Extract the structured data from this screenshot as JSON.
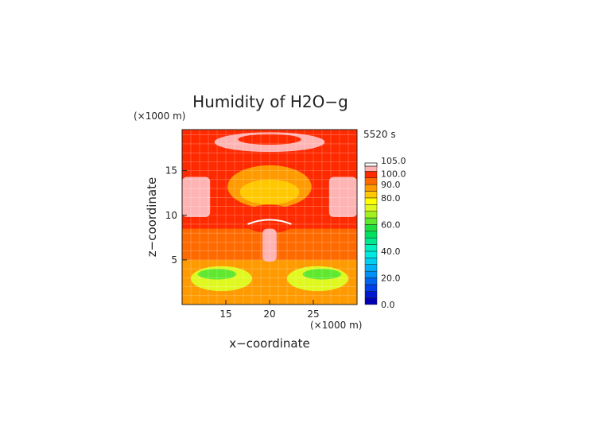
{
  "chart_data": {
    "type": "heatmap",
    "title": "Humidity of H2O−g",
    "time_label": "5520 s",
    "xlabel": "x−coordinate",
    "ylabel": "z−coordinate",
    "x_unit": "(×1000 m)",
    "z_unit": "(×1000 m)",
    "xlim": [
      10,
      30
    ],
    "zlim": [
      0,
      19.6
    ],
    "x_ticks": [
      15,
      20,
      25
    ],
    "z_ticks": [
      5,
      10,
      15
    ],
    "grid": true,
    "colorbar": {
      "levels": [
        {
          "min": 0,
          "max": 5,
          "color": "#0000b4"
        },
        {
          "min": 5,
          "max": 10,
          "color": "#0018d0"
        },
        {
          "min": 10,
          "max": 15,
          "color": "#0040e8"
        },
        {
          "min": 15,
          "max": 20,
          "color": "#0064f0"
        },
        {
          "min": 20,
          "max": 25,
          "color": "#0090f8"
        },
        {
          "min": 25,
          "max": 30,
          "color": "#00b0f8"
        },
        {
          "min": 30,
          "max": 35,
          "color": "#00d0f0"
        },
        {
          "min": 35,
          "max": 40,
          "color": "#00e8e0"
        },
        {
          "min": 40,
          "max": 45,
          "color": "#00f0c0"
        },
        {
          "min": 45,
          "max": 50,
          "color": "#00e890"
        },
        {
          "min": 50,
          "max": 55,
          "color": "#00e060"
        },
        {
          "min": 55,
          "max": 60,
          "color": "#20e040"
        },
        {
          "min": 60,
          "max": 65,
          "color": "#60e830"
        },
        {
          "min": 65,
          "max": 70,
          "color": "#a0f020"
        },
        {
          "min": 70,
          "max": 75,
          "color": "#e0f820"
        },
        {
          "min": 75,
          "max": 80,
          "color": "#ffff00"
        },
        {
          "min": 80,
          "max": 85,
          "color": "#ffc800"
        },
        {
          "min": 85,
          "max": 90,
          "color": "#ff9a00"
        },
        {
          "min": 90,
          "max": 95,
          "color": "#ff6a00"
        },
        {
          "min": 95,
          "max": 100,
          "color": "#ff2a00"
        },
        {
          "min": 100,
          "max": 105,
          "color": "#ffb4b4"
        }
      ],
      "tick_labels": [
        "0.0",
        "20.0",
        "40.0",
        "60.0",
        "80.0",
        "90.0",
        "100.0",
        "105.0"
      ],
      "tick_values": [
        0,
        20,
        40,
        60,
        80,
        90,
        100,
        105
      ]
    },
    "regions_by_level": [
      {
        "value": 97,
        "shape": "background"
      },
      {
        "value": 92,
        "shape": "band",
        "x": [
          10,
          30
        ],
        "z": [
          5,
          8.5
        ]
      },
      {
        "value": 87,
        "shape": "band",
        "x": [
          10,
          30
        ],
        "z": [
          0,
          5
        ]
      },
      {
        "value": 72,
        "shape": "ellipse",
        "cx": 14.5,
        "cz": 2.9,
        "rx": 3.5,
        "rz": 1.4
      },
      {
        "value": 72,
        "shape": "ellipse",
        "cx": 25.5,
        "cz": 2.9,
        "rx": 3.5,
        "rz": 1.4
      },
      {
        "value": 62,
        "shape": "ellipse",
        "cx": 14,
        "cz": 3.4,
        "rx": 2.2,
        "rz": 0.6
      },
      {
        "value": 62,
        "shape": "ellipse",
        "cx": 26,
        "cz": 3.4,
        "rx": 2.2,
        "rz": 0.6
      },
      {
        "value": 87,
        "shape": "ellipse",
        "cx": 20,
        "cz": 13.2,
        "rx": 4.8,
        "rz": 2.4
      },
      {
        "value": 82,
        "shape": "ellipse",
        "cx": 20,
        "cz": 12.6,
        "rx": 3.4,
        "rz": 1.4
      },
      {
        "value": 97,
        "shape": "ellipse",
        "cx": 20,
        "cz": 9.6,
        "rx": 3.2,
        "rz": 1.6
      },
      {
        "value": 102,
        "shape": "ellipse",
        "cx": 20,
        "cz": 18.2,
        "rx": 6.3,
        "rz": 1.1
      },
      {
        "value": 97,
        "shape": "ellipse",
        "cx": 20,
        "cz": 18.5,
        "rx": 3.6,
        "rz": 0.6
      },
      {
        "value": 102,
        "shape": "block",
        "x": [
          10,
          13.2
        ],
        "z": [
          9.8,
          14.3
        ]
      },
      {
        "value": 102,
        "shape": "block",
        "x": [
          26.8,
          30
        ],
        "z": [
          9.8,
          14.3
        ]
      },
      {
        "value": 102,
        "shape": "block",
        "x": [
          19.2,
          20.8
        ],
        "z": [
          4.8,
          8.5
        ]
      }
    ]
  }
}
